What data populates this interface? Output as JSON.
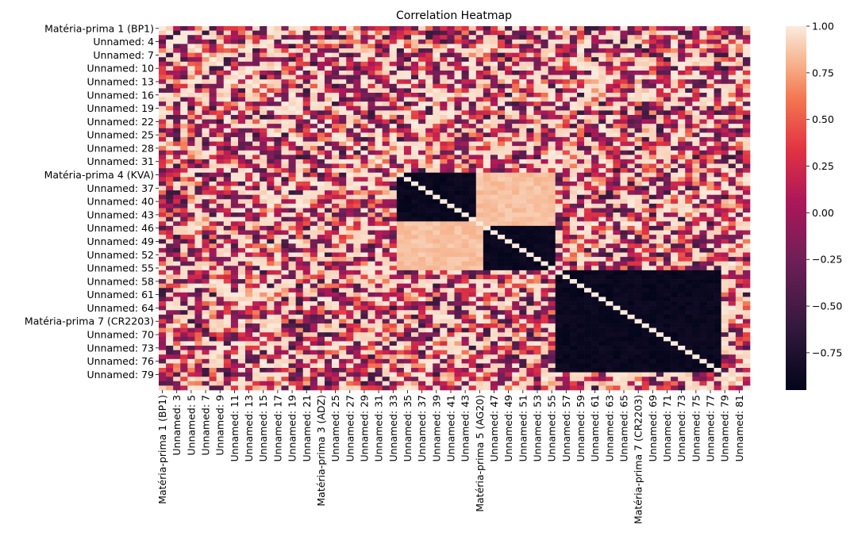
{
  "chart_data": {
    "type": "heatmap",
    "title": "Correlation Heatmap",
    "rows": 82,
    "cols": 82,
    "value_range": [
      -0.95,
      1.0
    ],
    "colormap": "rocket",
    "annotated": true,
    "y_tick_labels": [
      {
        "index": 0,
        "label": "Matéria-prima 1 (BP1)"
      },
      {
        "index": 3,
        "label": "Unnamed: 4"
      },
      {
        "index": 6,
        "label": "Unnamed: 7"
      },
      {
        "index": 9,
        "label": "Unnamed: 10"
      },
      {
        "index": 12,
        "label": "Unnamed: 13"
      },
      {
        "index": 15,
        "label": "Unnamed: 16"
      },
      {
        "index": 18,
        "label": "Unnamed: 19"
      },
      {
        "index": 21,
        "label": "Unnamed: 22"
      },
      {
        "index": 24,
        "label": "Unnamed: 25"
      },
      {
        "index": 27,
        "label": "Unnamed: 28"
      },
      {
        "index": 30,
        "label": "Unnamed: 31"
      },
      {
        "index": 33,
        "label": "Matéria-prima 4 (KVA)"
      },
      {
        "index": 36,
        "label": "Unnamed: 37"
      },
      {
        "index": 39,
        "label": "Unnamed: 40"
      },
      {
        "index": 42,
        "label": "Unnamed: 43"
      },
      {
        "index": 45,
        "label": "Unnamed: 46"
      },
      {
        "index": 48,
        "label": "Unnamed: 49"
      },
      {
        "index": 51,
        "label": "Unnamed: 52"
      },
      {
        "index": 54,
        "label": "Unnamed: 55"
      },
      {
        "index": 57,
        "label": "Unnamed: 58"
      },
      {
        "index": 60,
        "label": "Unnamed: 61"
      },
      {
        "index": 63,
        "label": "Unnamed: 64"
      },
      {
        "index": 66,
        "label": "Matéria-prima 7 (CR2203)"
      },
      {
        "index": 69,
        "label": "Unnamed: 70"
      },
      {
        "index": 72,
        "label": "Unnamed: 73"
      },
      {
        "index": 75,
        "label": "Unnamed: 76"
      },
      {
        "index": 78,
        "label": "Unnamed: 79"
      }
    ],
    "x_tick_labels": [
      {
        "index": 0,
        "label": "Matéria-prima 1 (BP1)"
      },
      {
        "index": 2,
        "label": "Unnamed: 3"
      },
      {
        "index": 4,
        "label": "Unnamed: 5"
      },
      {
        "index": 6,
        "label": "Unnamed: 7"
      },
      {
        "index": 8,
        "label": "Unnamed: 9"
      },
      {
        "index": 10,
        "label": "Unnamed: 11"
      },
      {
        "index": 12,
        "label": "Unnamed: 13"
      },
      {
        "index": 14,
        "label": "Unnamed: 15"
      },
      {
        "index": 16,
        "label": "Unnamed: 17"
      },
      {
        "index": 18,
        "label": "Unnamed: 19"
      },
      {
        "index": 20,
        "label": "Unnamed: 21"
      },
      {
        "index": 22,
        "label": "Matéria-prima 3 (ADZ)"
      },
      {
        "index": 24,
        "label": "Unnamed: 25"
      },
      {
        "index": 26,
        "label": "Unnamed: 27"
      },
      {
        "index": 28,
        "label": "Unnamed: 29"
      },
      {
        "index": 30,
        "label": "Unnamed: 31"
      },
      {
        "index": 32,
        "label": "Unnamed: 33"
      },
      {
        "index": 34,
        "label": "Unnamed: 35"
      },
      {
        "index": 36,
        "label": "Unnamed: 37"
      },
      {
        "index": 38,
        "label": "Unnamed: 39"
      },
      {
        "index": 40,
        "label": "Unnamed: 41"
      },
      {
        "index": 42,
        "label": "Unnamed: 43"
      },
      {
        "index": 44,
        "label": "Matéria-prima 5 (AG20)"
      },
      {
        "index": 46,
        "label": "Unnamed: 47"
      },
      {
        "index": 48,
        "label": "Unnamed: 49"
      },
      {
        "index": 50,
        "label": "Unnamed: 51"
      },
      {
        "index": 52,
        "label": "Unnamed: 53"
      },
      {
        "index": 54,
        "label": "Unnamed: 55"
      },
      {
        "index": 56,
        "label": "Unnamed: 57"
      },
      {
        "index": 58,
        "label": "Unnamed: 59"
      },
      {
        "index": 60,
        "label": "Unnamed: 61"
      },
      {
        "index": 62,
        "label": "Unnamed: 63"
      },
      {
        "index": 64,
        "label": "Unnamed: 65"
      },
      {
        "index": 66,
        "label": "Matéria-prima 7 (CR2203)"
      },
      {
        "index": 68,
        "label": "Unnamed: 69"
      },
      {
        "index": 70,
        "label": "Unnamed: 71"
      },
      {
        "index": 72,
        "label": "Unnamed: 73"
      },
      {
        "index": 74,
        "label": "Unnamed: 75"
      },
      {
        "index": 76,
        "label": "Unnamed: 77"
      },
      {
        "index": 78,
        "label": "Unnamed: 79"
      },
      {
        "index": 80,
        "label": "Unnamed: 81"
      }
    ],
    "strong_blocks": [
      {
        "rows": [
          33,
          44
        ],
        "cols": [
          33,
          44
        ],
        "value": -0.9,
        "note": "strong negative"
      },
      {
        "rows": [
          44,
          54
        ],
        "cols": [
          44,
          54
        ],
        "value": -0.9,
        "note": "strong negative"
      },
      {
        "rows": [
          33,
          44
        ],
        "cols": [
          44,
          54
        ],
        "value": 0.85,
        "note": "strong positive"
      },
      {
        "rows": [
          44,
          54
        ],
        "cols": [
          33,
          44
        ],
        "value": 0.85,
        "note": "strong positive"
      },
      {
        "rows": [
          55,
          77
        ],
        "cols": [
          55,
          77
        ],
        "value": -0.9,
        "note": "strong negative"
      }
    ],
    "colorbar": {
      "ticks": [
        1.0,
        0.75,
        0.5,
        0.25,
        0.0,
        -0.25,
        -0.5,
        -0.75
      ],
      "tick_labels": [
        "1.00",
        "0.75",
        "0.50",
        "0.25",
        "0.00",
        "−0.25",
        "−0.50",
        "−0.75"
      ]
    }
  }
}
